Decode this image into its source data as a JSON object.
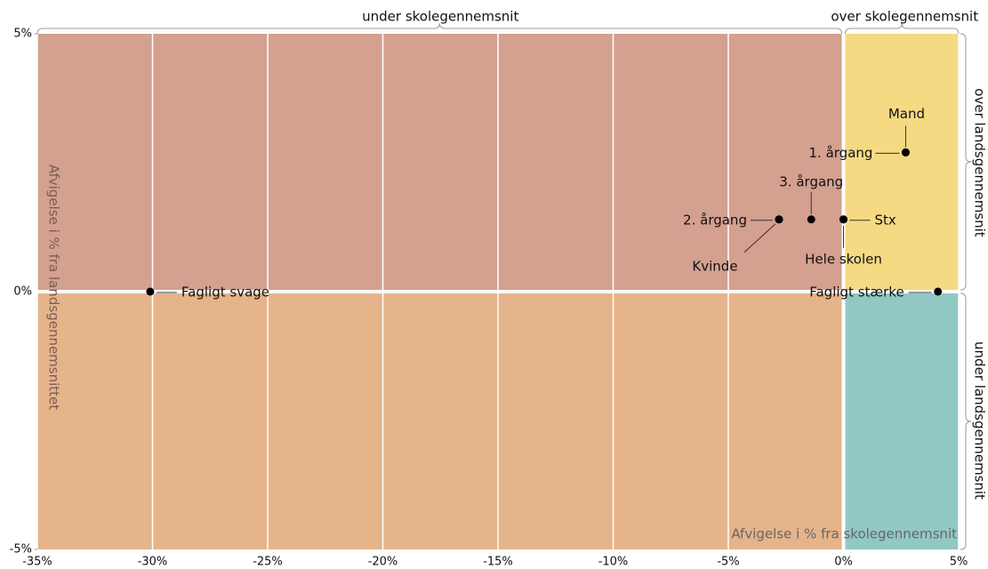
{
  "chart_data": {
    "type": "scatter",
    "x_label": "Afvigelse i % fra skolegennemsnit",
    "y_label": "Afvigelse i % fra landsgennemsnittet",
    "quadrant_labels": {
      "top_left": "under skolegennemsnit",
      "top_right": "over skolegennemsnit",
      "right_top": "over landsgennemsnit",
      "right_bottom": "under landsgennemsnit"
    },
    "quadrant_colors": {
      "top_left": "#d4a090",
      "bottom_left": "#e5b48a",
      "top_right": "#f5d983",
      "bottom_right": "#92c8c4"
    },
    "point_color": "#000000",
    "points": [
      {
        "label": "Mand",
        "x": 2.7,
        "y": 2.7
      },
      {
        "label": "1. årgang",
        "x": 2.7,
        "y": 2.7
      },
      {
        "label": "2. årgang",
        "x": -2.8,
        "y": 1.4
      },
      {
        "label": "Kvinde",
        "x": -2.8,
        "y": 1.4
      },
      {
        "label": "3. årgang",
        "x": -1.4,
        "y": 1.4
      },
      {
        "label": "Hele skolen",
        "x": 0,
        "y": 1.4
      },
      {
        "label": "Stx",
        "x": 0,
        "y": 1.4
      },
      {
        "label": "Fagligt svage",
        "x": -30.1,
        "y": 0
      },
      {
        "label": "Fagligt stærke",
        "x": 4.1,
        "y": 0
      }
    ],
    "xlim": [
      -35,
      5
    ],
    "xticks": [
      {
        "value": -35,
        "label": "-35%"
      },
      {
        "value": -30,
        "label": "-30%"
      },
      {
        "value": -25,
        "label": "-25%"
      },
      {
        "value": -20,
        "label": "-20%"
      },
      {
        "value": -15,
        "label": "-15%"
      },
      {
        "value": -10,
        "label": "-10%"
      },
      {
        "value": -5,
        "label": "-5%"
      },
      {
        "value": 0,
        "label": "0%"
      },
      {
        "value": 5,
        "label": "5%"
      }
    ],
    "ylim": [
      -5,
      5
    ],
    "yticks": [
      {
        "value": -5,
        "label": "-5%"
      },
      {
        "value": 0,
        "label": "0%"
      },
      {
        "value": 5,
        "label": "5%"
      }
    ],
    "grid": true
  }
}
